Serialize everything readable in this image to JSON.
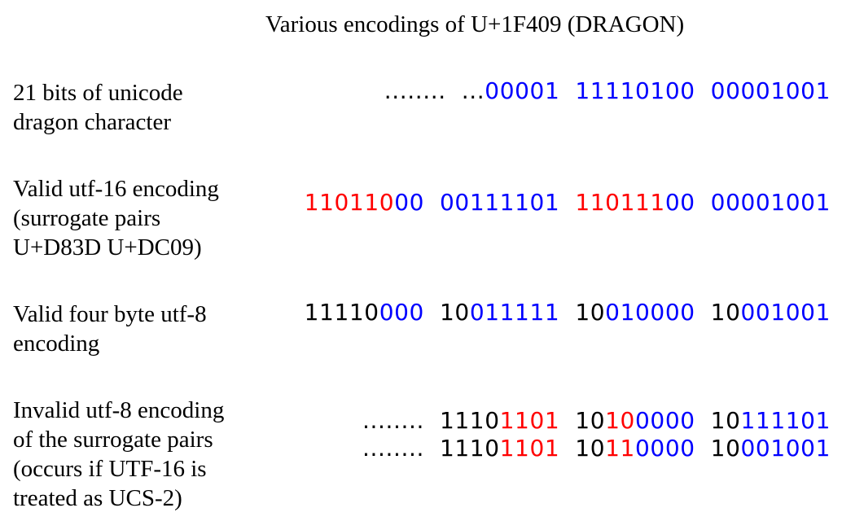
{
  "title": "Various encodings of U+1F409 (DRAGON)",
  "colors": {
    "black": "#000000",
    "blue": "#0000ff",
    "red": "#ff0000"
  },
  "rows": [
    {
      "id": "unicode-bits",
      "label_lines": [
        "21 bits of unicode",
        "dragon character"
      ],
      "bit_lines": [
        [
          {
            "t": "........  ...",
            "c": "black"
          },
          {
            "t": "00001  11110100  00001001",
            "c": "blue"
          }
        ]
      ]
    },
    {
      "id": "utf16",
      "label_lines": [
        "Valid utf-16 encoding",
        "(surrogate pairs",
        "U+D83D U+DC09)"
      ],
      "bit_lines": [
        [
          {
            "t": "110110",
            "c": "red"
          },
          {
            "t": "00  00111101  ",
            "c": "blue"
          },
          {
            "t": "110111",
            "c": "red"
          },
          {
            "t": "00  00001001",
            "c": "blue"
          }
        ]
      ]
    },
    {
      "id": "utf8-valid",
      "label_lines": [
        "Valid four byte utf-8",
        "encoding"
      ],
      "bit_lines": [
        [
          {
            "t": "11110",
            "c": "black"
          },
          {
            "t": "000  ",
            "c": "blue"
          },
          {
            "t": "10",
            "c": "black"
          },
          {
            "t": "011111  ",
            "c": "blue"
          },
          {
            "t": "10",
            "c": "black"
          },
          {
            "t": "010000  ",
            "c": "blue"
          },
          {
            "t": "10",
            "c": "black"
          },
          {
            "t": "001001",
            "c": "blue"
          }
        ]
      ]
    },
    {
      "id": "utf8-invalid",
      "label_lines": [
        "Invalid utf-8 encoding",
        "of the surrogate pairs",
        "(occurs if UTF-16 is",
        "treated as UCS-2)"
      ],
      "bit_lines": [
        [
          {
            "t": "........  ",
            "c": "black"
          },
          {
            "t": "1110",
            "c": "black"
          },
          {
            "t": "1101  ",
            "c": "red"
          },
          {
            "t": "10",
            "c": "black"
          },
          {
            "t": "10",
            "c": "red"
          },
          {
            "t": "0000  ",
            "c": "blue"
          },
          {
            "t": "10",
            "c": "black"
          },
          {
            "t": "111101",
            "c": "blue"
          }
        ],
        [
          {
            "t": "........  ",
            "c": "black"
          },
          {
            "t": "1110",
            "c": "black"
          },
          {
            "t": "1101  ",
            "c": "red"
          },
          {
            "t": "10",
            "c": "black"
          },
          {
            "t": "11",
            "c": "red"
          },
          {
            "t": "0000  ",
            "c": "blue"
          },
          {
            "t": "10",
            "c": "black"
          },
          {
            "t": "001001",
            "c": "blue"
          }
        ]
      ]
    }
  ]
}
